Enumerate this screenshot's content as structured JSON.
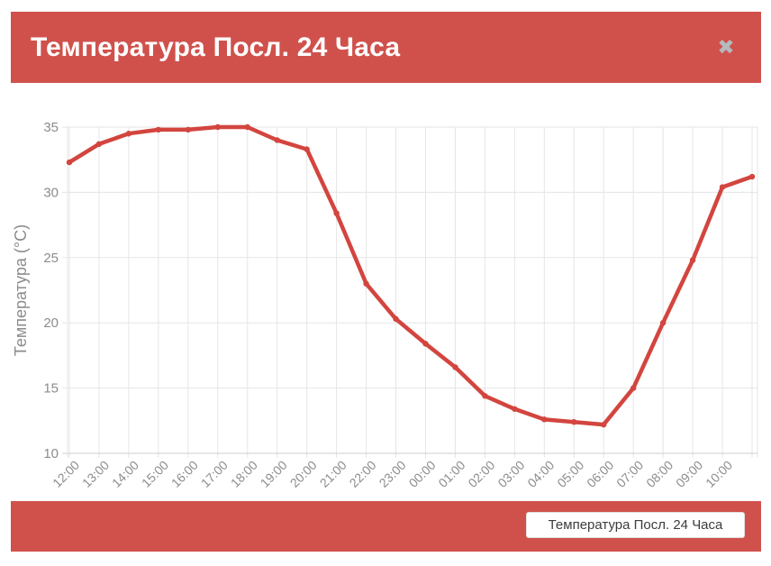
{
  "header": {
    "title": "Температура Посл. 24 Часа",
    "close_glyph": "✖"
  },
  "footer": {
    "legend_label": "Температура Посл. 24 Часа"
  },
  "colors": {
    "accent_red": "#d0514c",
    "line_red": "#d3453f",
    "grid": "#e5e5e5",
    "grid_bottom": "#cfcfcf",
    "axis_text": "#8c8c8c",
    "legend_text": "#3d3d3d",
    "close_icon": "#b4babd",
    "chip_bg": "#ffffff"
  },
  "chart_data": {
    "type": "line",
    "title": "Температура Посл. 24 Часа",
    "xlabel": "",
    "ylabel": "Температура (°C)",
    "ylim": [
      10,
      35
    ],
    "y_ticks": [
      10,
      15,
      20,
      25,
      30,
      35
    ],
    "grid": true,
    "legend_position": "bottom-right",
    "marker": "dot",
    "categories": [
      "12:00",
      "13:00",
      "14:00",
      "15:00",
      "16:00",
      "17:00",
      "18:00",
      "19:00",
      "20:00",
      "21:00",
      "22:00",
      "23:00",
      "00:00",
      "01:00",
      "02:00",
      "03:00",
      "04:00",
      "05:00",
      "06:00",
      "07:00",
      "08:00",
      "09:00",
      "10:00"
    ],
    "values": [
      32.3,
      33.7,
      34.5,
      34.8,
      34.8,
      35.0,
      35.0,
      34.0,
      33.3,
      28.4,
      23.0,
      20.3,
      18.4,
      16.6,
      14.4,
      13.4,
      12.6,
      12.4,
      12.2,
      15.0,
      20.0,
      24.8,
      30.4,
      31.2
    ],
    "note": "series has one trailing unlabeled point one hour past the last x label"
  }
}
